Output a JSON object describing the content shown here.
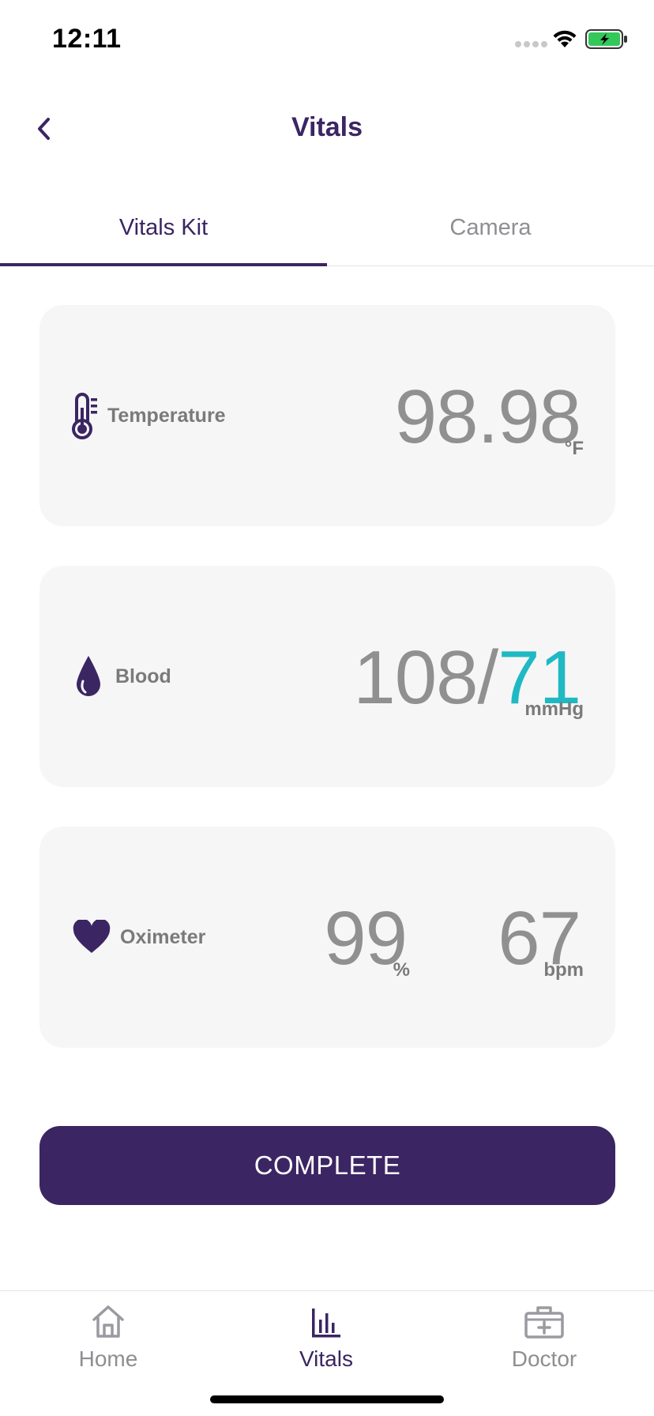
{
  "status_bar": {
    "time": "12:11",
    "icons": [
      "signal-dots-icon",
      "wifi-icon",
      "battery-charging-icon"
    ],
    "battery_color": "#34c759"
  },
  "header": {
    "title": "Vitals",
    "back_icon": "chevron-left-icon"
  },
  "tabs": [
    {
      "label": "Vitals Kit",
      "active": true
    },
    {
      "label": "Camera",
      "active": false
    }
  ],
  "vitals": {
    "temperature": {
      "label": "Temperature",
      "icon": "thermometer-icon",
      "value": "98.98",
      "unit": "°F"
    },
    "blood": {
      "label": "Blood",
      "icon": "blood-drop-icon",
      "systolic": "108",
      "separator": "/",
      "diastolic": "71",
      "unit": "mmHg"
    },
    "oximeter": {
      "label": "Oximeter",
      "icon": "heart-icon",
      "spo2": "99",
      "spo2_unit": "%",
      "pulse": "67",
      "pulse_unit": "bpm"
    }
  },
  "complete_button": {
    "label": "COMPLETE"
  },
  "bottom_nav": [
    {
      "label": "Home",
      "icon": "home-icon",
      "active": false
    },
    {
      "label": "Vitals",
      "icon": "bar-chart-icon",
      "active": true
    },
    {
      "label": "Doctor",
      "icon": "medical-kit-icon",
      "active": false
    }
  ],
  "colors": {
    "primary": "#3b2563",
    "accent": "#1fb9c3",
    "card_background": "#f6f6f6",
    "inactive_text": "#8e8e93",
    "value_text": "#909090"
  }
}
